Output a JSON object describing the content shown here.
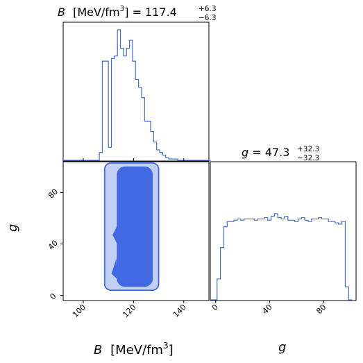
{
  "colors": {
    "line": "#4169e1",
    "contour_inner": "#4169e1",
    "contour_outer": "#c2cff5"
  },
  "labels": {
    "b_var": "B",
    "b_unit_pre": "[MeV/fm",
    "b_unit_exp": "3",
    "b_unit_post": "]",
    "b_title_mid": "= 117.4",
    "b_title_sup": "+6.3",
    "b_title_sub": "−6.3",
    "g_var": "g",
    "g_title_mid": "= 47.3",
    "g_title_sup": "+32.3",
    "g_title_sub": "−32.3",
    "ylabel_g": "g",
    "xlabel_g": "g"
  },
  "ticks": {
    "b": [
      "100",
      "120",
      "140"
    ],
    "g": [
      "0",
      "40",
      "80"
    ]
  },
  "chart_data": [
    {
      "type": "histogram",
      "panel": "B marginal",
      "title": "B [MeV/fm3] = 117.4 +6.3 -6.3",
      "x_range": [
        92,
        150
      ],
      "bin_width": 1.2,
      "counts": [
        0,
        0,
        0,
        0,
        0,
        0,
        0,
        0,
        0,
        0,
        0,
        0,
        0.06,
        0.76,
        0.76,
        0.1,
        0.78,
        0.8,
        1.0,
        0.86,
        0.8,
        0.86,
        0.92,
        0.76,
        0.62,
        0.56,
        0.48,
        0.3,
        0.3,
        0.22,
        0.14,
        0.08,
        0.06,
        0.04,
        0.02,
        0.01,
        0.01,
        0.01,
        0,
        0,
        0,
        0,
        0,
        0,
        0,
        0,
        0,
        0,
        0
      ]
    },
    {
      "type": "histogram",
      "panel": "g marginal",
      "title": "g = 47.3 +32.3 -32.3",
      "x_range": [
        -4,
        104
      ],
      "bin_width": 2.5,
      "counts": [
        0,
        0,
        0.16,
        0.4,
        0.56,
        0.6,
        0.6,
        0.61,
        0.62,
        0.61,
        0.62,
        0.62,
        0.62,
        0.61,
        0.62,
        0.62,
        0.63,
        0.61,
        0.64,
        0.66,
        0.63,
        0.62,
        0.64,
        0.61,
        0.61,
        0.6,
        0.62,
        0.63,
        0.61,
        0.6,
        0.62,
        0.62,
        0.63,
        0.62,
        0.62,
        0.6,
        0.6,
        0.59,
        0.58,
        0.6,
        0.1,
        0
      ]
    },
    {
      "type": "contour",
      "panel": "B vs g joint",
      "x_range": [
        92,
        150
      ],
      "y_range": [
        -4,
        104
      ],
      "x_ticks": [
        100,
        120,
        140
      ],
      "y_ticks": [
        0,
        40,
        80
      ],
      "xlabel": "B [MeV/fm3]",
      "ylabel": "g",
      "levels": [
        {
          "name": "outer",
          "x_min": 108.5,
          "x_max": 130,
          "y_min": 4,
          "y_max": 103
        },
        {
          "name": "inner",
          "x_min": 113.5,
          "x_max": 127.5,
          "y_min": 7,
          "y_max": 100
        }
      ]
    }
  ]
}
